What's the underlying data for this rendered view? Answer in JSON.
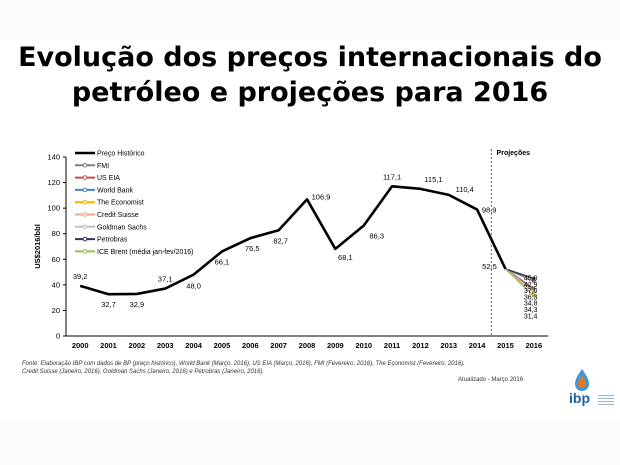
{
  "slide": {
    "title_line1": "Evolução dos preços internacionais do",
    "title_line2": "petróleo e projeções para 2016",
    "source_line1": "Fonte: Elaboração IBP com dados de BP (preço histórico), World Bank (Março, 2016), US EIA (Março, 2016), FMI (Fevereiro, 2016), The Economist (Fevereiro, 2016),",
    "source_line2": "Credit Suisse (Janeiro, 2016), Goldman Sachs (Janeiro, 2016) e Petrobras (Janeiro, 2016).",
    "updated": "Atualizado - Março 2016",
    "logo_text": "ibp"
  },
  "chart_data": {
    "type": "line",
    "title": "",
    "ylabel": "US$2016/bbl",
    "ylim": [
      0,
      140
    ],
    "yticks": [
      0,
      20,
      40,
      60,
      80,
      100,
      120,
      140
    ],
    "categories": [
      "2000",
      "2001",
      "2002",
      "2003",
      "2004",
      "2005",
      "2006",
      "2007",
      "2008",
      "2009",
      "2010",
      "2011",
      "2012",
      "2013",
      "2014",
      "2015",
      "2016"
    ],
    "projection_label": "Projeções",
    "legend_position": "top-left",
    "grid": false,
    "series": [
      {
        "name": "Preço Histórico",
        "color": "#000000",
        "x": [
          "2000",
          "2001",
          "2002",
          "2003",
          "2004",
          "2005",
          "2006",
          "2007",
          "2008",
          "2009",
          "2010",
          "2011",
          "2012",
          "2013",
          "2014",
          "2015"
        ],
        "values": [
          39.2,
          32.7,
          32.9,
          37.1,
          48.0,
          66.1,
          76.5,
          82.7,
          106.9,
          68.1,
          86.3,
          117.1,
          115.1,
          110.4,
          98.9,
          52.5
        ],
        "labels": [
          "39,2",
          "32,7",
          "32,9",
          "37,1",
          "48,0",
          "66,1",
          "76,5",
          "82,7",
          "106,9",
          "68,1",
          "86,3",
          "117,1",
          "115,1",
          "110,4",
          "98,9",
          "52,5"
        ]
      },
      {
        "name": "FMI",
        "color": "#7f7f7f",
        "x": [
          "2015",
          "2016"
        ],
        "values": [
          52.5,
          42.9
        ]
      },
      {
        "name": "US EIA",
        "color": "#c0504d",
        "x": [
          "2015",
          "2016"
        ],
        "values": [
          52.5,
          37.0
        ]
      },
      {
        "name": "World Bank",
        "color": "#4f81bd",
        "x": [
          "2015",
          "2016"
        ],
        "values": [
          52.5,
          36.3
        ]
      },
      {
        "name": "The Economist",
        "color": "#f0b400",
        "x": [
          "2015",
          "2016"
        ],
        "values": [
          52.5,
          34.8
        ]
      },
      {
        "name": "Credit Suisse",
        "color": "#f4a582",
        "x": [
          "2015",
          "2016"
        ],
        "values": [
          52.5,
          34.3
        ]
      },
      {
        "name": "Goldman Sachs",
        "color": "#bfbfbf",
        "x": [
          "2015",
          "2016"
        ],
        "values": [
          52.5,
          31.4
        ]
      },
      {
        "name": "Petrobras",
        "color": "#3b3055",
        "x": [
          "2015",
          "2016"
        ],
        "values": [
          52.5,
          45.0
        ]
      },
      {
        "name": "ICE Brent (média jan-fev/2016)",
        "color": "#9bbb59",
        "x": [
          "2015",
          "2016"
        ],
        "values": [
          52.5,
          31.4
        ]
      }
    ],
    "projection_labels": [
      "45,0",
      "42,9",
      "37,0",
      "36,3",
      "34,8",
      "34,3",
      "31,4"
    ]
  }
}
